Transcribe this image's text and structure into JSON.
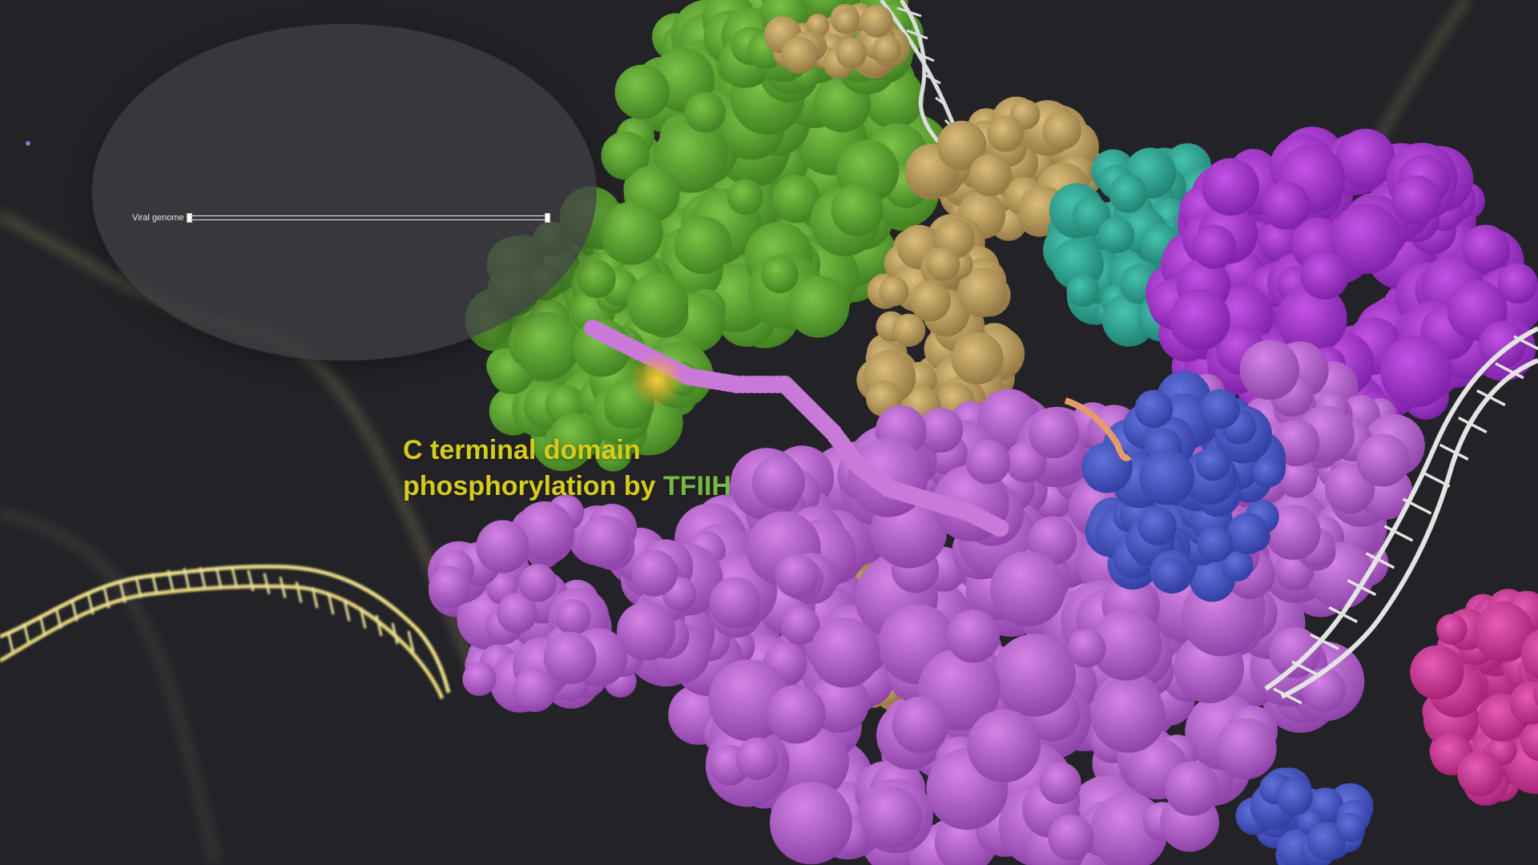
{
  "overlay": {
    "genome_label": "Viral genome"
  },
  "caption": {
    "line1": "C terminal domain",
    "line2_prefix": "phosphorylation by ",
    "line2_highlight": "TFIIH"
  },
  "colors": {
    "background": "#232227",
    "caption_text": "#d6cc1b",
    "caption_highlight": "#76b943",
    "tfiih_green": "#63a92f",
    "pol2_violet": "#c069d6",
    "magenta": "#a836d4",
    "teal": "#2fa896",
    "blue": "#4755c7",
    "tan": "#c9a762",
    "pink": "#d93aa0",
    "dna_white": "#e6e6e6",
    "dna_yellow": "#e8dc86"
  },
  "scene": {
    "icons": [
      "tfiih-protein-icon",
      "polymerase-protein-icon",
      "dna-helix-icon"
    ]
  }
}
